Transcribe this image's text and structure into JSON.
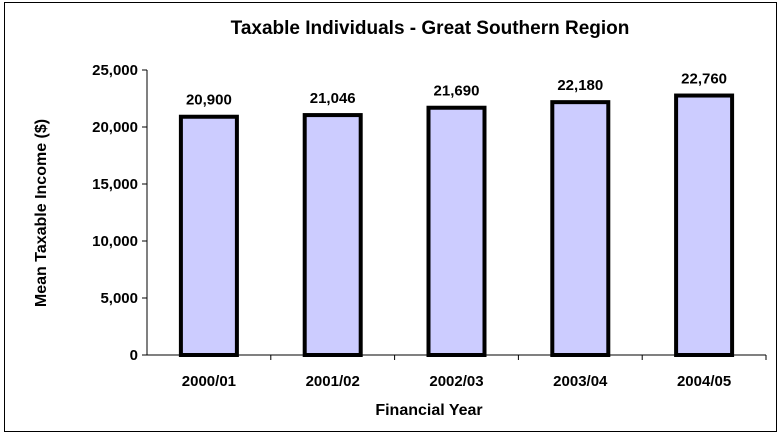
{
  "chart_data": {
    "type": "bar",
    "title": "Taxable Individuals - Great Southern Region",
    "xlabel": "Financial Year",
    "ylabel": "Mean Taxable Income ($)",
    "categories": [
      "2000/01",
      "2001/02",
      "2002/03",
      "2003/04",
      "2004/05"
    ],
    "values": [
      20900,
      21046,
      21690,
      22180,
      22760
    ],
    "data_labels": [
      "20,900",
      "21,046",
      "21,690",
      "22,180",
      "22,760"
    ],
    "ylim": [
      0,
      25000
    ],
    "yticks": [
      0,
      5000,
      10000,
      15000,
      20000,
      25000
    ],
    "ytick_labels": [
      "0",
      "5,000",
      "10,000",
      "15,000",
      "20,000",
      "25,000"
    ],
    "grid": false,
    "legend": "none",
    "colors": {
      "bar_fill": "#ccccff",
      "bar_stroke": "#000000"
    }
  }
}
